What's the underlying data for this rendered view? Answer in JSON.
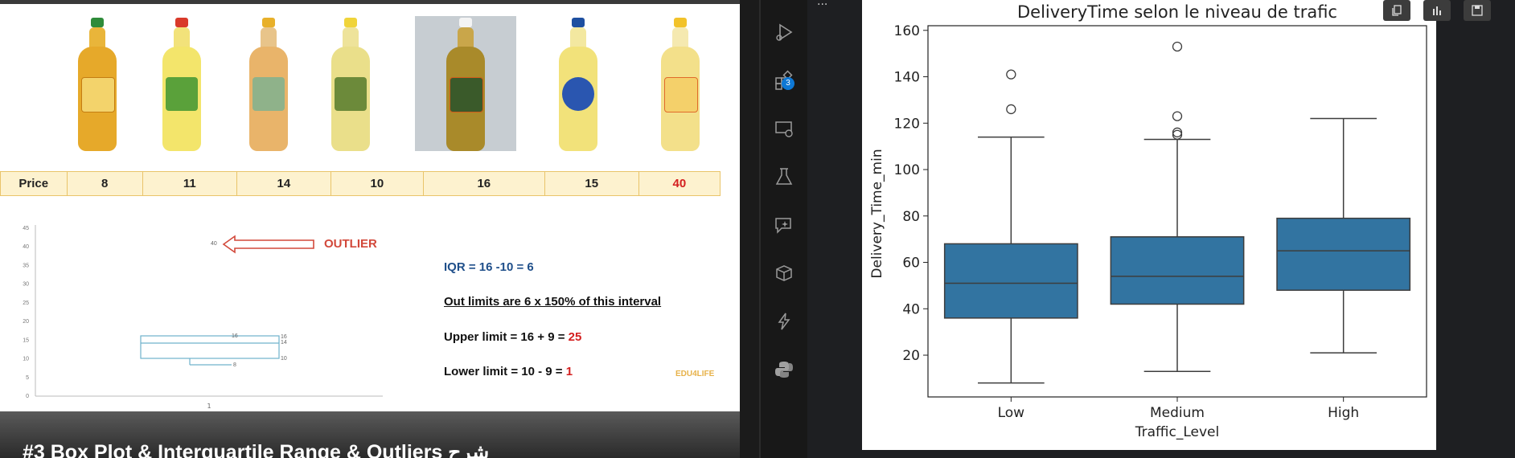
{
  "video": {
    "prices_header": "Price",
    "prices": [
      "8",
      "11",
      "14",
      "10",
      "16",
      "15",
      "40"
    ],
    "outlier_label": "OUTLIER",
    "mini_plot": {
      "y_ticks": [
        "45",
        "40",
        "35",
        "30",
        "25",
        "20",
        "15",
        "10",
        "5",
        "0"
      ],
      "x_tick": "1",
      "outlier_point": "40",
      "q3": "16",
      "median": "14",
      "q1": "10",
      "min": "8",
      "median_top_label": "16"
    },
    "notes": {
      "iqr": "IQR = 16 -10 = 6",
      "out_limits": "Out limits are 6 x 150% of this interval",
      "upper_prefix": "Upper limit = 16 + 9 = ",
      "upper_value": "25",
      "lower_prefix": "Lower limit = 10 - 9  = ",
      "lower_value": "1"
    },
    "logo": "EDU4LIFE",
    "title": "#3 Box Plot & Interquartile Range & Outliers شرح"
  },
  "activity_bar": {
    "items": [
      "run-debug-icon",
      "extensions-icon",
      "remote-explorer-icon",
      "testing-icon",
      "copilot-icon",
      "containers-icon",
      "lightning-icon",
      "python-icon"
    ],
    "extensions_badge": "3"
  },
  "ellipsis": "...",
  "toolbar": {
    "buttons": [
      "copy-icon",
      "chart-icon",
      "save-icon"
    ]
  },
  "chart_data": {
    "type": "box",
    "title": "DeliveryTime selon le niveau de trafic",
    "xlabel": "Traffic_Level",
    "ylabel": "Delivery_Time_min",
    "categories": [
      "Low",
      "Medium",
      "High"
    ],
    "ylim": [
      2,
      162
    ],
    "yticks": [
      20,
      40,
      60,
      80,
      100,
      120,
      140,
      160
    ],
    "color": "#3274a1",
    "boxes": [
      {
        "whisker_low": 8,
        "q1": 36,
        "median": 51,
        "q3": 68,
        "whisker_high": 114,
        "outliers": [
          126,
          141
        ]
      },
      {
        "whisker_low": 13,
        "q1": 42,
        "median": 54,
        "q3": 71,
        "whisker_high": 113,
        "outliers": [
          115,
          116,
          123,
          153
        ]
      },
      {
        "whisker_low": 21,
        "q1": 48,
        "median": 65,
        "q3": 79,
        "whisker_high": 122,
        "outliers": []
      }
    ],
    "grid": false,
    "legend": "none"
  }
}
